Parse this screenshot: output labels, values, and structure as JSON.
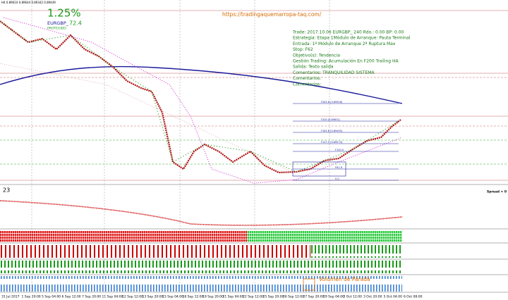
{
  "header": {
    "symbol_line": "H4  0.89610 0.89644 0.89342 0.89449"
  },
  "badge": {
    "percent": "1.25%",
    "symbol": "EURGBP_",
    "score": "72.4",
    "status": "PROTEGIDO"
  },
  "url": "https://tradingaquemarropa-taq.com/",
  "info_lines": [
    "Trade: 2017.10.06 EURGBP_ 240  Rdo.: 0.00  BP: 0.00",
    "Estrategia: Etapa 1Módulo de Arranque: Pauta Terminal",
    "Entrada:  1º Módulo de Arranque 2ª Ruptura Max",
    "Stop: F62",
    "Objetivo(s): Tendencia",
    "Gestión Trading: Acumulación  En F200 Trailing HA",
    "Salida: Texto salida",
    "Comentarios: TRANQUILIDAD  SISTEMA",
    "Comentarios:",
    "Comentarios:"
  ],
  "fib_labels": [
    "F261.8 (0.89918)",
    "F200 (0.89631)",
    "F161.8 (0.89455)",
    "F127.2 (0.89274)",
    "F100.0",
    "F61.8",
    "0.0"
  ],
  "indicator_label": "23",
  "spread_label": "Spread = 0",
  "volume_label": "Volumen de Parada",
  "x_labels": [
    "31 Jul 2017",
    "1 Sep 20:00",
    "5 Sep 04:00",
    "6 Sep 12:00",
    "7 Sep 20:00",
    "11 Sep 04:00",
    "12 Sep 12:00",
    "13 Sep 20:00",
    "15 Sep 04:00",
    "18 Sep 12:00",
    "19 Sep 20:00",
    "21 Sep 04:00",
    "22 Sep 12:00",
    "25 Sep 20:00",
    "26 Sep 12:00",
    "27 Sep 20:00",
    "29 Sep 04:00",
    "2 Oct 12:00",
    "3 Oct 20:00",
    "5 Oct 04:00",
    "6 Oct 08:00"
  ]
}
